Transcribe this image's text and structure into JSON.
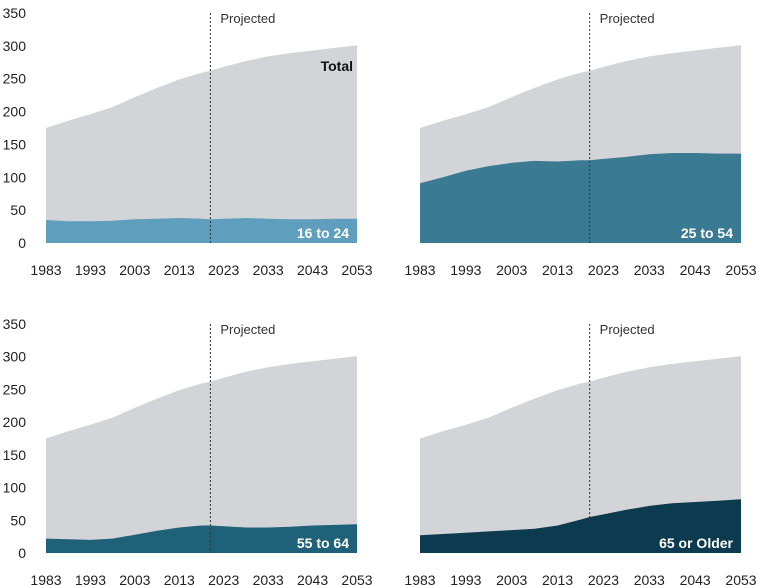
{
  "chart_data": [
    {
      "type": "area",
      "series_label": "16 to 24",
      "total_label": "Total",
      "projected_label": "Projected",
      "projected_start": 2020,
      "x": [
        1983,
        1988,
        1993,
        1998,
        2003,
        2008,
        2013,
        2018,
        2020,
        2023,
        2028,
        2033,
        2038,
        2043,
        2048,
        2053
      ],
      "total": [
        175,
        186,
        196,
        207,
        222,
        236,
        249,
        259,
        262,
        268,
        277,
        284,
        289,
        293,
        297,
        301
      ],
      "values": [
        35,
        33,
        33,
        34,
        36,
        37,
        38,
        37,
        36,
        37,
        38,
        37,
        36,
        36,
        37,
        37
      ],
      "xticks": [
        1983,
        1993,
        2003,
        2013,
        2023,
        2033,
        2043,
        2053
      ],
      "yticks": [
        0,
        50,
        100,
        150,
        200,
        250,
        300,
        350
      ],
      "xlim": [
        1983,
        2053
      ],
      "ylim": [
        0,
        350
      ],
      "colors": {
        "total": "#d3d4d8",
        "series": "#5f9ebd"
      }
    },
    {
      "type": "area",
      "series_label": "25 to 54",
      "total_label": "",
      "projected_label": "Projected",
      "projected_start": 2020,
      "x": [
        1983,
        1988,
        1993,
        1998,
        2003,
        2008,
        2013,
        2018,
        2020,
        2023,
        2028,
        2033,
        2038,
        2043,
        2048,
        2053
      ],
      "total": [
        175,
        186,
        196,
        207,
        222,
        236,
        249,
        259,
        262,
        268,
        277,
        284,
        289,
        293,
        297,
        301
      ],
      "values": [
        91,
        100,
        110,
        117,
        122,
        125,
        124,
        126,
        126,
        128,
        131,
        135,
        137,
        137,
        136,
        136
      ],
      "xticks": [
        1983,
        1993,
        2003,
        2013,
        2023,
        2033,
        2043,
        2053
      ],
      "yticks": [],
      "xlim": [
        1983,
        2053
      ],
      "ylim": [
        0,
        350
      ],
      "colors": {
        "total": "#d3d4d8",
        "series": "#3a7a93"
      }
    },
    {
      "type": "area",
      "series_label": "55 to 64",
      "total_label": "",
      "projected_label": "Projected",
      "projected_start": 2020,
      "x": [
        1983,
        1988,
        1993,
        1998,
        2003,
        2008,
        2013,
        2018,
        2020,
        2023,
        2028,
        2033,
        2038,
        2043,
        2048,
        2053
      ],
      "total": [
        175,
        186,
        196,
        207,
        222,
        236,
        249,
        259,
        262,
        268,
        277,
        284,
        289,
        293,
        297,
        301
      ],
      "values": [
        22,
        21,
        20,
        22,
        28,
        34,
        39,
        42,
        42,
        41,
        39,
        39,
        40,
        42,
        43,
        44
      ],
      "xticks": [
        1983,
        1993,
        2003,
        2013,
        2023,
        2033,
        2043,
        2053
      ],
      "yticks": [
        0,
        50,
        100,
        150,
        200,
        250,
        300,
        350
      ],
      "xlim": [
        1983,
        2053
      ],
      "ylim": [
        0,
        350
      ],
      "colors": {
        "total": "#d3d4d8",
        "series": "#1f6179"
      }
    },
    {
      "type": "area",
      "series_label": "65 or Older",
      "total_label": "",
      "projected_label": "Projected",
      "projected_start": 2020,
      "x": [
        1983,
        1988,
        1993,
        1998,
        2003,
        2008,
        2013,
        2018,
        2020,
        2023,
        2028,
        2033,
        2038,
        2043,
        2048,
        2053
      ],
      "total": [
        175,
        186,
        196,
        207,
        222,
        236,
        249,
        259,
        262,
        268,
        277,
        284,
        289,
        293,
        297,
        301
      ],
      "values": [
        27,
        29,
        31,
        33,
        35,
        37,
        42,
        51,
        55,
        59,
        66,
        72,
        76,
        78,
        80,
        82
      ],
      "xticks": [
        1983,
        1993,
        2003,
        2013,
        2023,
        2033,
        2043,
        2053
      ],
      "yticks": [],
      "xlim": [
        1983,
        2053
      ],
      "ylim": [
        0,
        350
      ],
      "colors": {
        "total": "#d3d4d8",
        "series": "#0c3a4f"
      }
    }
  ]
}
